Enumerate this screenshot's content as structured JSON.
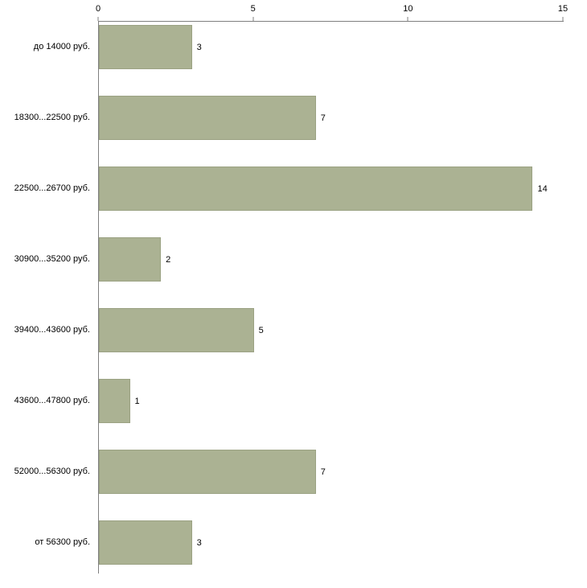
{
  "chart_data": {
    "type": "bar",
    "orientation": "horizontal",
    "title": "",
    "categories": [
      "до 14000 руб.",
      "18300...22500 руб.",
      "22500...26700 руб.",
      "30900...35200 руб.",
      "39400...43600 руб.",
      "43600...47800 руб.",
      "52000...56300 руб.",
      "от 56300 руб."
    ],
    "values": [
      3,
      7,
      14,
      2,
      5,
      1,
      7,
      3
    ],
    "value_labels_shown": true,
    "xlim": [
      0,
      15
    ],
    "x_ticks": [
      0,
      5,
      10,
      15
    ],
    "grid": false,
    "legend": "none",
    "colors": {
      "bar": "#abb293",
      "bar_border": "#9ba283",
      "axis": "#7f7f7f",
      "text": "#000000",
      "background": "#ffffff"
    }
  }
}
